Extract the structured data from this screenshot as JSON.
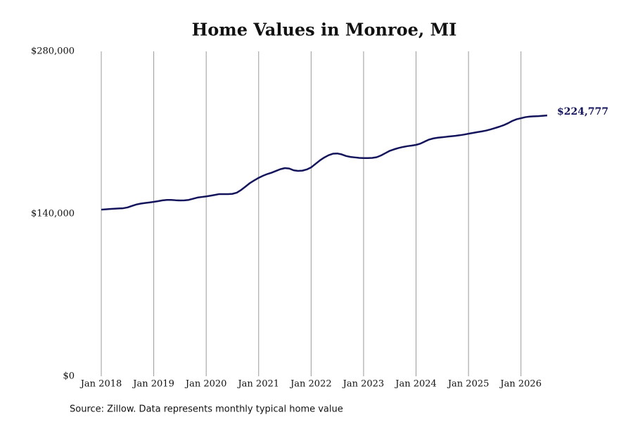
{
  "chart_data": {
    "type": "line",
    "title": "Home Values in Monroe, MI",
    "source": "Source: Zillow. Data represents monthly typical home value",
    "x": [
      "2018-01",
      "2018-02",
      "2018-03",
      "2018-04",
      "2018-05",
      "2018-06",
      "2018-07",
      "2018-08",
      "2018-09",
      "2018-10",
      "2018-11",
      "2018-12",
      "2019-01",
      "2019-02",
      "2019-03",
      "2019-04",
      "2019-05",
      "2019-06",
      "2019-07",
      "2019-08",
      "2019-09",
      "2019-10",
      "2019-11",
      "2019-12",
      "2020-01",
      "2020-02",
      "2020-03",
      "2020-04",
      "2020-05",
      "2020-06",
      "2020-07",
      "2020-08",
      "2020-09",
      "2020-10",
      "2020-11",
      "2020-12",
      "2021-01",
      "2021-02",
      "2021-03",
      "2021-04",
      "2021-05",
      "2021-06",
      "2021-07",
      "2021-08",
      "2021-09",
      "2021-10",
      "2021-11",
      "2021-12",
      "2022-01",
      "2022-02",
      "2022-03",
      "2022-04",
      "2022-05",
      "2022-06",
      "2022-07",
      "2022-08",
      "2022-09",
      "2022-10",
      "2022-11",
      "2022-12",
      "2023-01",
      "2023-02",
      "2023-03",
      "2023-04",
      "2023-05",
      "2023-06",
      "2023-07",
      "2023-08",
      "2023-09",
      "2023-10",
      "2023-11",
      "2023-12",
      "2024-01",
      "2024-02",
      "2024-03",
      "2024-04",
      "2024-05",
      "2024-06",
      "2024-07",
      "2024-08",
      "2024-09",
      "2024-10",
      "2024-11",
      "2024-12",
      "2025-01",
      "2025-02",
      "2025-03",
      "2025-04",
      "2025-05",
      "2025-06",
      "2025-07",
      "2025-08",
      "2025-09",
      "2025-10",
      "2025-11",
      "2025-12",
      "2026-01",
      "2026-02",
      "2026-03",
      "2026-04",
      "2026-05",
      "2026-06",
      "2026-07"
    ],
    "series": [
      {
        "color": "#14145c",
        "values": [
          143600,
          143900,
          144200,
          144400,
          144600,
          144800,
          145500,
          146800,
          148000,
          148800,
          149300,
          149800,
          150300,
          150900,
          151600,
          152000,
          152000,
          151700,
          151500,
          151600,
          152000,
          153000,
          154000,
          154500,
          155000,
          155600,
          156300,
          157000,
          157000,
          157000,
          157200,
          158200,
          160600,
          163500,
          166500,
          168800,
          171000,
          172800,
          174300,
          175500,
          177000,
          178500,
          179400,
          179000,
          177500,
          177000,
          177200,
          178200,
          180000,
          183000,
          186000,
          188500,
          190500,
          191800,
          192000,
          191200,
          189800,
          189000,
          188600,
          188200,
          188000,
          188000,
          188200,
          188800,
          190300,
          192300,
          194300,
          195600,
          196700,
          197600,
          198300,
          198800,
          199400,
          200500,
          202300,
          204000,
          205000,
          205600,
          206000,
          206400,
          206800,
          207200,
          207700,
          208300,
          209000,
          209700,
          210400,
          211000,
          211700,
          212700,
          213800,
          215000,
          216300,
          218000,
          220000,
          221500,
          222400,
          223300,
          223800,
          224000,
          224200,
          224500,
          224777
        ]
      }
    ],
    "annotations": [
      {
        "x": "2026-07",
        "value": 224777,
        "label": "$224,777"
      }
    ],
    "xlim": [
      "2018-01",
      "2026-07"
    ],
    "xticks": [
      {
        "value": "2018-01",
        "label": "Jan 2018"
      },
      {
        "value": "2019-01",
        "label": "Jan 2019"
      },
      {
        "value": "2020-01",
        "label": "Jan 2020"
      },
      {
        "value": "2021-01",
        "label": "Jan 2021"
      },
      {
        "value": "2022-01",
        "label": "Jan 2022"
      },
      {
        "value": "2023-01",
        "label": "Jan 2023"
      },
      {
        "value": "2024-01",
        "label": "Jan 2024"
      },
      {
        "value": "2025-01",
        "label": "Jan 2025"
      },
      {
        "value": "2026-01",
        "label": "Jan 2026"
      }
    ],
    "ylim": [
      0,
      280000
    ],
    "yticks": [
      {
        "value": 0,
        "label": "$0"
      },
      {
        "value": 140000,
        "label": "$140,000"
      },
      {
        "value": 280000,
        "label": "$280,000"
      }
    ],
    "grid": "x"
  }
}
